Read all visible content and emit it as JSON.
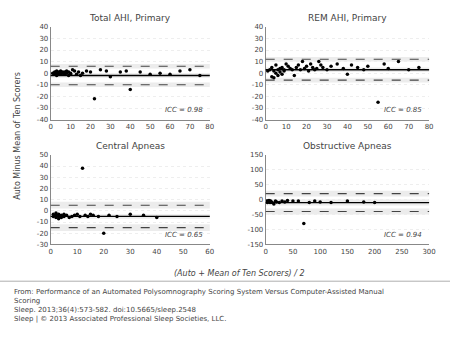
{
  "chart_data": [
    {
      "type": "scatter",
      "title": "Total AHI, Primary",
      "annotation": "ICC = 0.98",
      "x": [
        1,
        2,
        2,
        3,
        3,
        3,
        4,
        4,
        4,
        5,
        5,
        5,
        6,
        6,
        7,
        7,
        8,
        8,
        9,
        9,
        10,
        10,
        11,
        12,
        13,
        14,
        15,
        16,
        18,
        20,
        22,
        25,
        28,
        30,
        35,
        38,
        40,
        45,
        50,
        55,
        60,
        65,
        70,
        75
      ],
      "values": [
        0,
        1,
        -1,
        2,
        0,
        -2,
        1,
        0,
        -1,
        2,
        -1,
        0,
        1,
        0,
        -1,
        1,
        2,
        0,
        -2,
        1,
        0,
        -1,
        3,
        2,
        -1,
        1,
        -2,
        0,
        2,
        1,
        -22,
        3,
        2,
        -3,
        1,
        2,
        -14,
        1,
        -1,
        0,
        -1,
        2,
        3,
        -2
      ],
      "color": "#000000",
      "xlim": [
        0,
        80
      ],
      "ylim": [
        -40,
        40
      ],
      "xticks": [
        0,
        10,
        20,
        30,
        40,
        50,
        60,
        70,
        80
      ],
      "yticks": [
        -40,
        -30,
        -20,
        -10,
        0,
        10,
        20,
        30,
        40
      ],
      "grid": true,
      "reference_lines": [
        {
          "value": -2,
          "line_style": "solid",
          "color": "#000000"
        },
        {
          "value": 6,
          "line_style": "dashed",
          "color": "#444444"
        },
        {
          "value": -10,
          "line_style": "dashed",
          "color": "#444444"
        }
      ],
      "bands": [
        {
          "lo": 4,
          "hi": 8,
          "color": "gray"
        },
        {
          "lo": -12,
          "hi": -8,
          "color": "gray"
        },
        {
          "lo": -4,
          "hi": 0,
          "color": "gray"
        }
      ]
    },
    {
      "type": "scatter",
      "title": "REM AHI, Primary",
      "annotation": "ICC = 0.85",
      "x": [
        1,
        2,
        3,
        3,
        4,
        4,
        5,
        5,
        6,
        6,
        7,
        7,
        8,
        8,
        9,
        9,
        10,
        11,
        12,
        13,
        14,
        15,
        16,
        17,
        18,
        19,
        20,
        21,
        22,
        23,
        24,
        25,
        26,
        27,
        28,
        30,
        32,
        35,
        38,
        40,
        42,
        45,
        48,
        50,
        55,
        58,
        60,
        65,
        70,
        75
      ],
      "values": [
        2,
        3,
        -3,
        5,
        -4,
        2,
        0,
        7,
        3,
        -2,
        4,
        1,
        5,
        -1,
        3,
        2,
        8,
        6,
        4,
        3,
        -2,
        5,
        7,
        3,
        10,
        4,
        6,
        2,
        8,
        5,
        3,
        4,
        10,
        7,
        5,
        3,
        6,
        8,
        4,
        -1,
        7,
        5,
        3,
        6,
        -25,
        8,
        4,
        10,
        3,
        5
      ],
      "color": "#000000",
      "xlim": [
        0,
        80
      ],
      "ylim": [
        -40,
        40
      ],
      "xticks": [
        0,
        10,
        20,
        30,
        40,
        50,
        60,
        70,
        80
      ],
      "yticks": [
        -40,
        -30,
        -20,
        -10,
        0,
        10,
        20,
        30,
        40
      ],
      "grid": true,
      "reference_lines": [
        {
          "value": 3,
          "line_style": "solid",
          "color": "#000000"
        },
        {
          "value": 12,
          "line_style": "dashed",
          "color": "#444444"
        },
        {
          "value": -6,
          "line_style": "dashed",
          "color": "#444444"
        }
      ],
      "bands": [
        {
          "lo": 10,
          "hi": 14,
          "color": "gray"
        },
        {
          "lo": -8,
          "hi": -4,
          "color": "gray"
        },
        {
          "lo": 1,
          "hi": 5,
          "color": "gray"
        }
      ]
    },
    {
      "type": "scatter",
      "title": "Central Apneas",
      "annotation": "ICC = 0.65",
      "x": [
        1,
        1,
        2,
        2,
        2,
        3,
        3,
        3,
        4,
        4,
        5,
        5,
        6,
        7,
        8,
        9,
        10,
        11,
        12,
        13,
        14,
        15,
        16,
        18,
        20,
        22,
        25,
        30,
        35,
        40
      ],
      "values": [
        -5,
        -3,
        -6,
        -4,
        -2,
        -5,
        -3,
        -7,
        -4,
        -6,
        -5,
        -3,
        -4,
        -6,
        -5,
        -4,
        -3,
        -5,
        38,
        -4,
        -5,
        -3,
        -4,
        -5,
        -20,
        -4,
        -5,
        -3,
        -4,
        -6
      ],
      "color": "#000000",
      "xlim": [
        0,
        60
      ],
      "ylim": [
        -30,
        50
      ],
      "xticks": [
        0,
        10,
        20,
        30,
        40,
        50,
        60
      ],
      "yticks": [
        -30,
        -20,
        -10,
        0,
        10,
        20,
        30,
        40,
        50
      ],
      "grid": true,
      "reference_lines": [
        {
          "value": -5,
          "line_style": "solid",
          "color": "#000000"
        },
        {
          "value": 5,
          "line_style": "dashed",
          "color": "#444444"
        },
        {
          "value": -15,
          "line_style": "dashed",
          "color": "#444444"
        }
      ],
      "bands": [
        {
          "lo": 2,
          "hi": 8,
          "color": "gray"
        },
        {
          "lo": -18,
          "hi": -12,
          "color": "gray"
        },
        {
          "lo": -7,
          "hi": -3,
          "color": "gray"
        }
      ]
    },
    {
      "type": "scatter",
      "title": "Obstructive Apneas",
      "annotation": "ICC = 0.94",
      "x": [
        2,
        3,
        4,
        5,
        6,
        7,
        8,
        9,
        10,
        12,
        15,
        18,
        20,
        25,
        30,
        35,
        40,
        50,
        60,
        70,
        80,
        90,
        100,
        120,
        150,
        180,
        200
      ],
      "values": [
        -5,
        -10,
        -5,
        -8,
        -3,
        -5,
        -10,
        -5,
        -8,
        -10,
        -15,
        -5,
        -8,
        -10,
        -5,
        -8,
        -3,
        -5,
        -5,
        -80,
        -10,
        -5,
        -8,
        -10,
        -5,
        -8,
        -10
      ],
      "color": "#000000",
      "xlim": [
        0,
        300
      ],
      "ylim": [
        -150,
        150
      ],
      "xticks": [
        0,
        50,
        100,
        150,
        200,
        250,
        300
      ],
      "yticks": [
        -150,
        -100,
        -50,
        0,
        50,
        100,
        150
      ],
      "grid": true,
      "reference_lines": [
        {
          "value": -10,
          "line_style": "solid",
          "color": "#000000"
        },
        {
          "value": 20,
          "line_style": "dashed",
          "color": "#444444"
        },
        {
          "value": -40,
          "line_style": "dashed",
          "color": "#444444"
        }
      ],
      "bands": [
        {
          "lo": 10,
          "hi": 30,
          "color": "gray"
        },
        {
          "lo": -50,
          "hi": -30,
          "color": "gray"
        },
        {
          "lo": -20,
          "hi": 0,
          "color": "gray"
        }
      ]
    }
  ],
  "xlabel": "(Auto + Mean of Ten Scorers) / 2",
  "ylabel": "Auto Minus Mean of Ten Scorers",
  "caption_lines": [
    "From: Performance of an Automated Polysomnography Scoring System Versus Computer-Assisted Manual",
    "Scoring",
    "Sleep. 2013;36(4):573-582. doi:10.5665/sleep.2548",
    "Sleep | © 2013 Associated Professional Sleep Societies, LLC."
  ]
}
